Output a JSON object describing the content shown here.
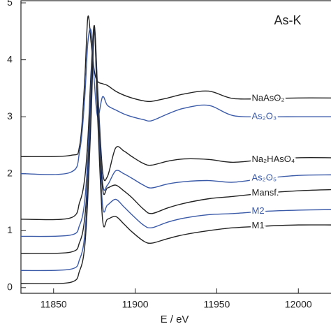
{
  "chart_data": {
    "type": "line",
    "title": "As-K",
    "xlabel": "E / eV",
    "x": [
      11830,
      11860,
      11866,
      11869,
      11871,
      11873,
      11875,
      11877,
      11880,
      11883,
      11888,
      11893,
      11898,
      11905,
      11910,
      11920,
      11930,
      11945,
      11960,
      11980,
      12000,
      12020
    ],
    "series": [
      {
        "name": "NaAsO₂",
        "color": "#222222",
        "values": [
          2.3,
          2.32,
          2.5,
          3.6,
          4.75,
          4.3,
          3.8,
          3.62,
          3.58,
          3.55,
          3.45,
          3.38,
          3.33,
          3.28,
          3.27,
          3.33,
          3.4,
          3.45,
          3.32,
          3.32,
          3.33,
          3.33
        ]
      },
      {
        "name": "As₂O₃",
        "color": "#3a5aa8",
        "values": [
          2.0,
          2.02,
          2.4,
          3.3,
          4.3,
          4.5,
          3.6,
          3.0,
          3.35,
          3.2,
          3.12,
          3.05,
          3.0,
          2.95,
          2.93,
          3.05,
          3.15,
          3.2,
          3.02,
          3.0,
          3.0,
          3.0
        ]
      },
      {
        "name": "Na₂HAsO₄",
        "color": "#222222",
        "values": [
          1.2,
          1.22,
          1.5,
          1.9,
          2.6,
          3.8,
          4.6,
          3.5,
          2.05,
          1.95,
          2.45,
          2.4,
          2.3,
          2.18,
          2.15,
          2.22,
          2.26,
          2.25,
          2.2,
          2.25,
          2.28,
          2.28
        ]
      },
      {
        "name": "As₂O₅",
        "color": "#3a5aa8",
        "values": [
          0.9,
          0.92,
          1.1,
          1.5,
          2.3,
          3.6,
          4.55,
          3.4,
          1.85,
          1.8,
          2.05,
          2.0,
          1.92,
          1.8,
          1.75,
          1.82,
          1.86,
          1.88,
          1.85,
          1.92,
          1.97,
          1.98
        ]
      },
      {
        "name": "Mansf.",
        "color": "#222222",
        "values": [
          0.6,
          0.62,
          0.8,
          1.2,
          2.0,
          3.4,
          4.55,
          3.3,
          1.75,
          1.75,
          1.8,
          1.7,
          1.58,
          1.38,
          1.3,
          1.4,
          1.48,
          1.56,
          1.6,
          1.66,
          1.7,
          1.72
        ]
      },
      {
        "name": "M2",
        "color": "#3a5aa8",
        "values": [
          0.3,
          0.32,
          0.5,
          0.9,
          1.8,
          3.2,
          4.5,
          3.1,
          1.45,
          1.45,
          1.55,
          1.42,
          1.28,
          1.1,
          1.05,
          1.15,
          1.22,
          1.28,
          1.3,
          1.34,
          1.36,
          1.37
        ]
      },
      {
        "name": "M1",
        "color": "#222222",
        "values": [
          0.07,
          0.09,
          0.3,
          0.7,
          1.6,
          3.0,
          4.5,
          3.0,
          1.2,
          1.2,
          1.25,
          1.12,
          0.98,
          0.82,
          0.78,
          0.86,
          0.93,
          1.0,
          1.05,
          1.08,
          1.1,
          1.1
        ]
      }
    ],
    "xlim": [
      11830,
      12020
    ],
    "ylim": [
      -0.1,
      5.05
    ],
    "xticks": [
      11850,
      11900,
      11950,
      12000
    ],
    "yticks": [
      0,
      1,
      2,
      3,
      4,
      5
    ]
  }
}
